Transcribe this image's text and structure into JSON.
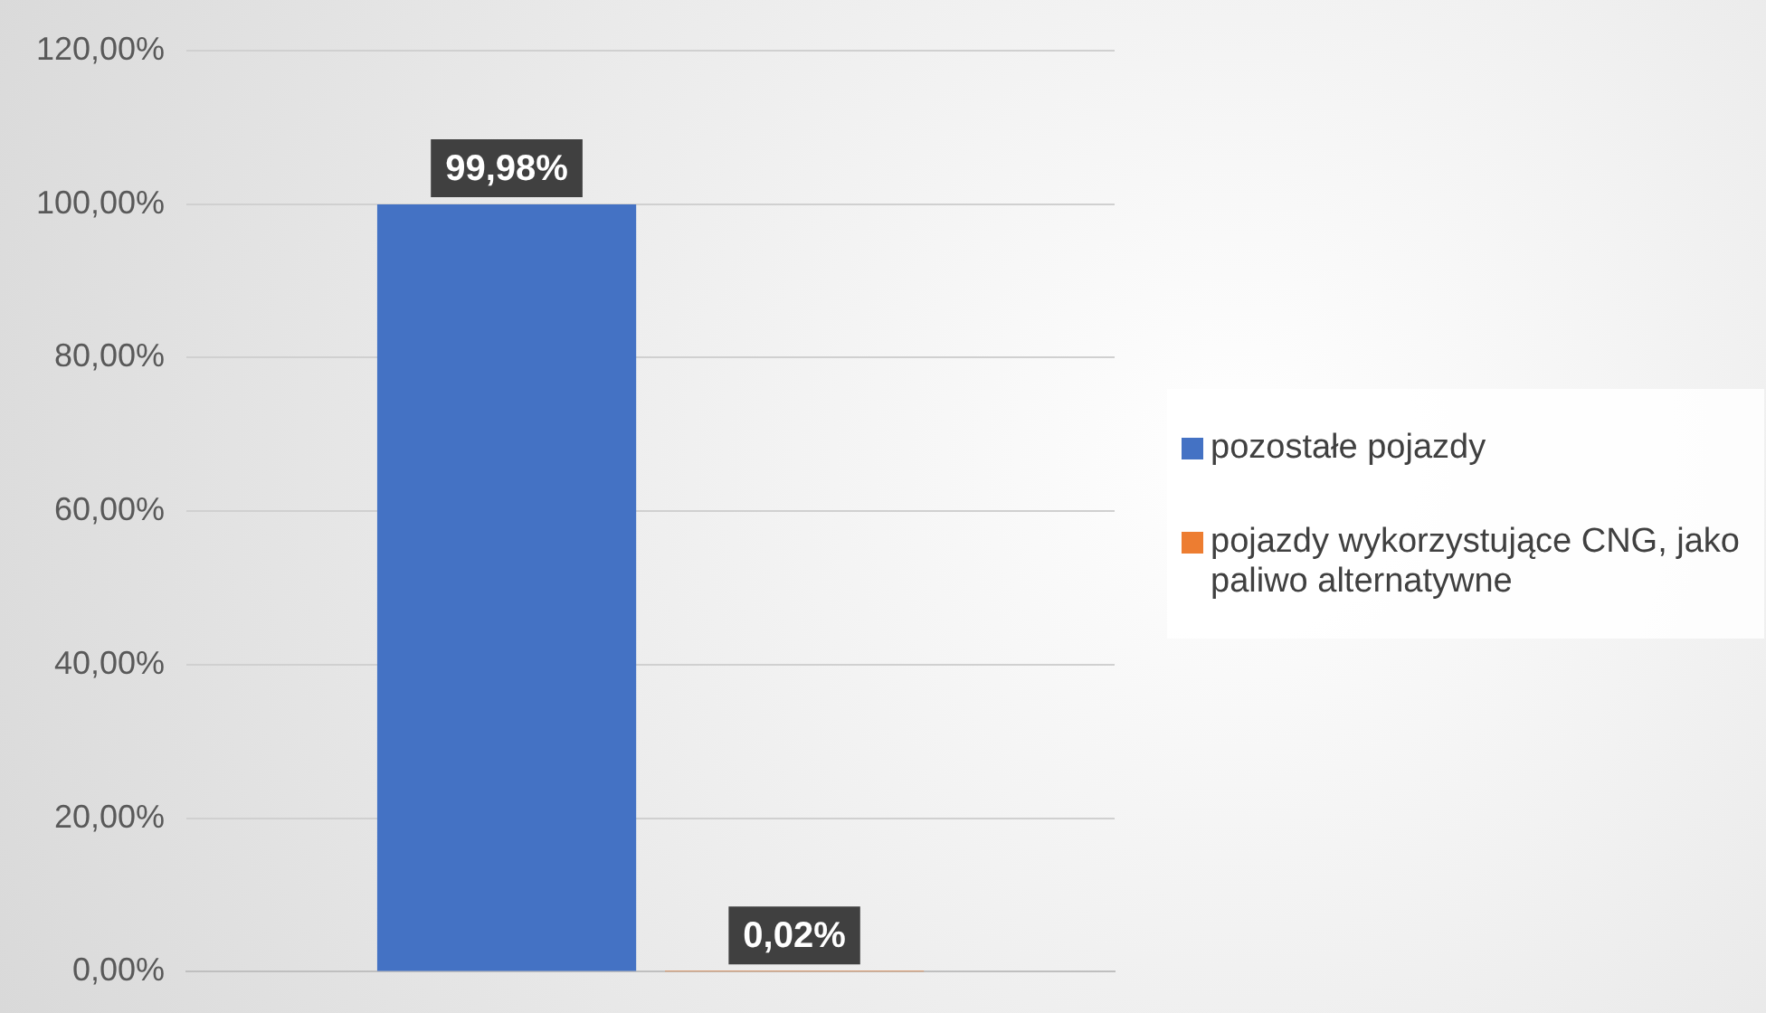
{
  "chart_data": {
    "type": "bar",
    "categories": [
      null
    ],
    "series": [
      {
        "name": "pozostałe pojazdy",
        "color": "#4472c4",
        "values": [
          99.98
        ],
        "value_labels": [
          "99,98%"
        ]
      },
      {
        "name": "pojazdy wykorzystujące CNG, jako paliwo alternatywne",
        "color": "#ed7d31",
        "values": [
          0.02
        ],
        "value_labels": [
          "0,02%"
        ]
      }
    ],
    "ylim": [
      0,
      120
    ],
    "yticks": [
      {
        "value": 0,
        "label": "0,00%"
      },
      {
        "value": 20,
        "label": "20,00%"
      },
      {
        "value": 40,
        "label": "40,00%"
      },
      {
        "value": 60,
        "label": "60,00%"
      },
      {
        "value": 80,
        "label": "80,00%"
      },
      {
        "value": 100,
        "label": "100,00%"
      },
      {
        "value": 120,
        "label": "120,00%"
      }
    ],
    "grid": "y",
    "legend": "right",
    "tick_labels": "y"
  }
}
